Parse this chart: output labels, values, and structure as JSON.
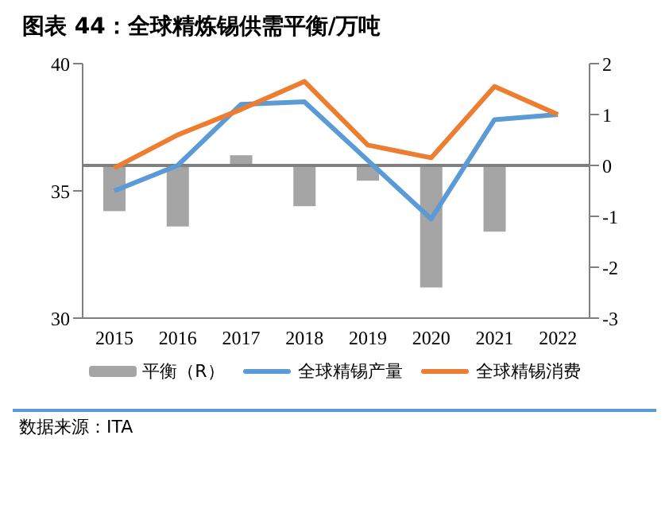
{
  "chart_data": {
    "type": "line",
    "title": "图表 44：全球精炼锡供需平衡/万吨",
    "categories": [
      "2015",
      "2016",
      "2017",
      "2018",
      "2019",
      "2020",
      "2021",
      "2022"
    ],
    "series": [
      {
        "name": "平衡（R）",
        "type": "bar",
        "axis": "y2",
        "color": "#a5a5a5",
        "values": [
          -0.9,
          -1.2,
          0.2,
          -0.8,
          -0.3,
          -2.4,
          -1.3,
          0
        ]
      },
      {
        "name": "全球精锡产量",
        "color": "#5b9bd5",
        "values": [
          35.0,
          36.0,
          38.4,
          38.5,
          36.2,
          33.9,
          37.8,
          38.0
        ]
      },
      {
        "name": "全球精锡消费",
        "color": "#ed7d31",
        "values": [
          35.9,
          37.2,
          38.2,
          39.3,
          36.8,
          36.3,
          39.1,
          38.0
        ]
      }
    ],
    "ylim": [
      30,
      40
    ],
    "yticks": [
      30,
      35,
      40
    ],
    "y2lim": [
      -3,
      2
    ],
    "y2ticks": [
      -3,
      -2,
      -1,
      0,
      1,
      2
    ],
    "ref_lines": [
      {
        "axis": "y2",
        "value": 0,
        "color": "#808080"
      }
    ],
    "grid": false,
    "legend": "bottom",
    "marker": "none",
    "line_style": "solid",
    "annotations": [
      "数据来源：ITA"
    ]
  }
}
